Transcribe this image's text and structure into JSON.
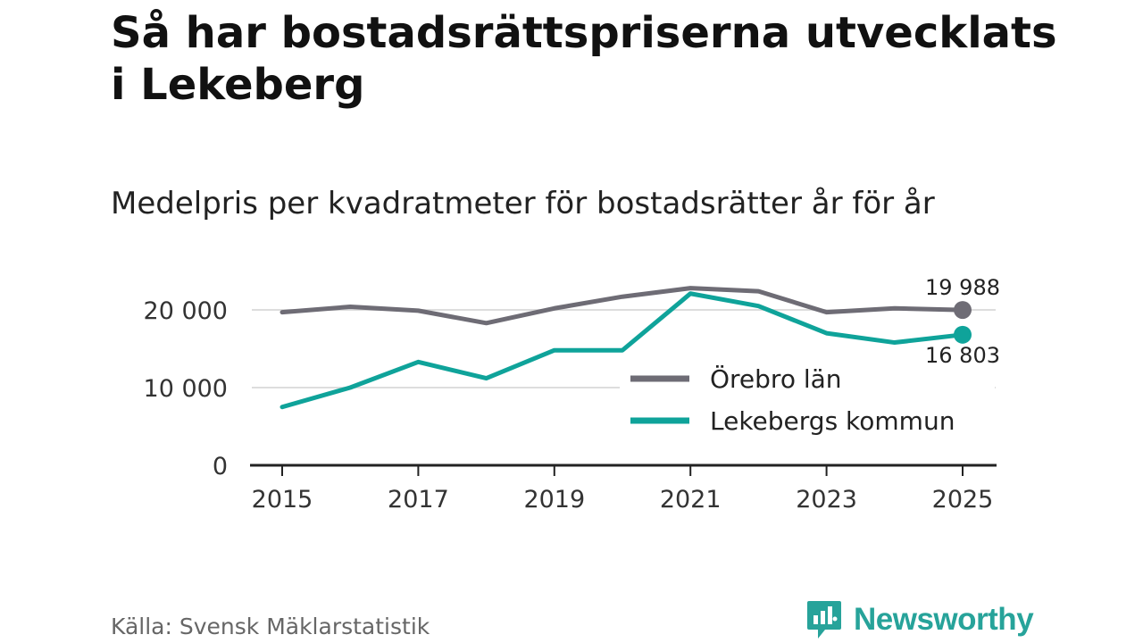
{
  "title": "Så har bostadsrättspriserna utvecklats i Lekeberg",
  "subtitle": "Medelpris per kvadratmeter för bostadsrätter år för år",
  "source": "Källa: Svensk Mäklarstatistik",
  "brand": {
    "name": "Newsworthy",
    "icon": "newsworthy-logo-icon",
    "color": "#27a39a"
  },
  "chart_data": {
    "type": "line",
    "title": "Så har bostadsrättspriserna utvecklats i Lekeberg",
    "subtitle": "Medelpris per kvadratmeter för bostadsrätter år för år",
    "xlabel": "",
    "ylabel": "",
    "x": [
      2015,
      2016,
      2017,
      2018,
      2019,
      2020,
      2021,
      2022,
      2023,
      2024,
      2025
    ],
    "xlim": [
      2015,
      2025
    ],
    "ylim": [
      0,
      20000
    ],
    "x_ticks": [
      2015,
      2017,
      2019,
      2021,
      2023,
      2025
    ],
    "x_tick_labels": [
      "2015",
      "2017",
      "2019",
      "2021",
      "2023",
      "2025"
    ],
    "y_ticks": [
      0,
      10000,
      20000
    ],
    "y_tick_labels": [
      "0",
      "10 000",
      "20 000"
    ],
    "grid": true,
    "legend_position": "center-right",
    "series": [
      {
        "name": "Örebro län",
        "color": "#6e6c75",
        "values": [
          19700,
          20400,
          19900,
          18300,
          20200,
          21700,
          22800,
          22400,
          19700,
          20200,
          19988
        ],
        "end_label": "19 988"
      },
      {
        "name": "Lekebergs kommun",
        "color": "#0fa39a",
        "values": [
          7500,
          10000,
          13300,
          11200,
          14800,
          14800,
          22100,
          20500,
          17000,
          15800,
          16803
        ],
        "end_label": "16 803"
      }
    ]
  }
}
